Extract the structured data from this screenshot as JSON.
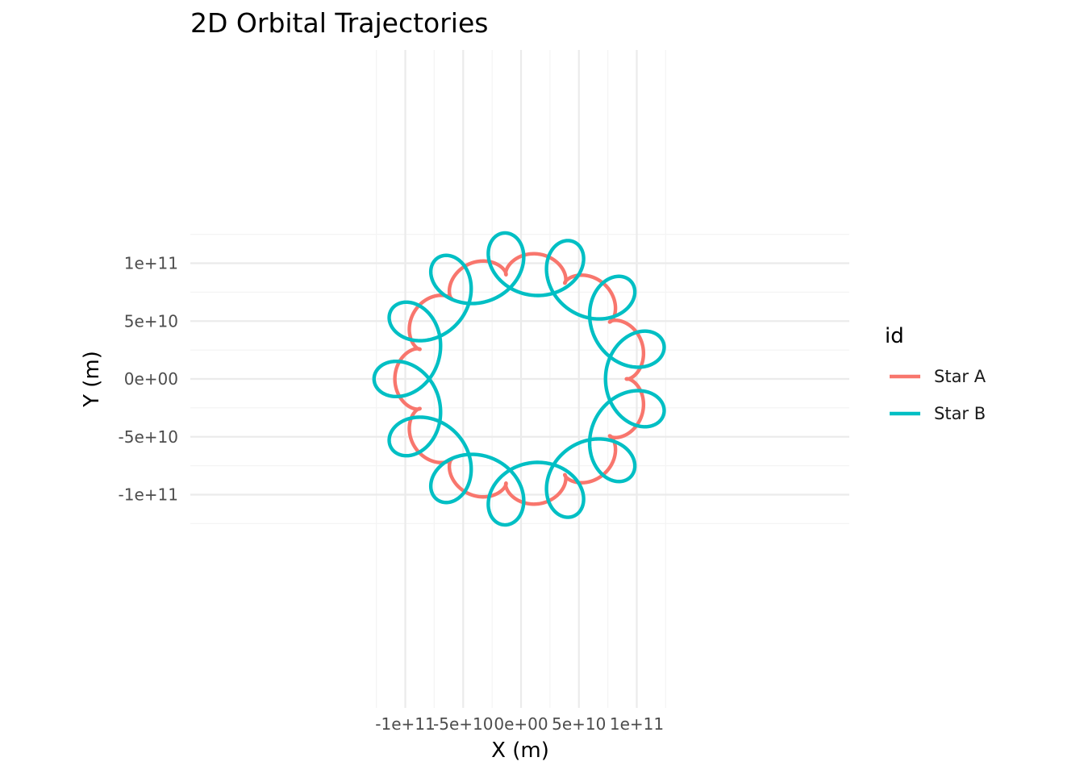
{
  "chart_data": {
    "type": "line",
    "title": "2D Orbital Trajectories",
    "xlabel": "X (m)",
    "ylabel": "Y (m)",
    "xlim": [
      -125000000000.0,
      125000000000.0
    ],
    "ylim": [
      -125000000000.0,
      125000000000.0
    ],
    "x_ticks": [
      {
        "value": -100000000000.0,
        "label": "-1e+11"
      },
      {
        "value": -50000000000.0,
        "label": "-5e+10"
      },
      {
        "value": 0,
        "label": "0e+00"
      },
      {
        "value": 50000000000.0,
        "label": "5e+10"
      },
      {
        "value": 100000000000.0,
        "label": "1e+11"
      }
    ],
    "y_ticks": [
      {
        "value": 100000000000.0,
        "label": "1e+11"
      },
      {
        "value": 50000000000.0,
        "label": "5e+10"
      },
      {
        "value": 0,
        "label": "0e+00"
      },
      {
        "value": -50000000000.0,
        "label": "-5e+10"
      },
      {
        "value": -100000000000.0,
        "label": "-1e+11"
      }
    ],
    "grid": true,
    "legend": {
      "title": "id",
      "position": "right",
      "entries": [
        {
          "name": "Star A",
          "color": "#F8766D"
        },
        {
          "name": "Star B",
          "color": "#00BFC4"
        }
      ]
    },
    "series": [
      {
        "name": "Star A",
        "color": "#F8766D",
        "model": {
          "center_orbit_radius": 100000000000.0,
          "loop_radius": 9000000000.0,
          "loops_per_revolution": 12,
          "start_angle_deg": 180,
          "revolutions": 2.05,
          "direction": 1
        }
      },
      {
        "name": "Star B",
        "color": "#00BFC4",
        "model": {
          "center_orbit_radius": 100000000000.0,
          "loop_radius": 27000000000.0,
          "loops_per_revolution": 12,
          "start_angle_deg": 180,
          "revolutions": 2.05,
          "direction": -1
        }
      }
    ]
  }
}
